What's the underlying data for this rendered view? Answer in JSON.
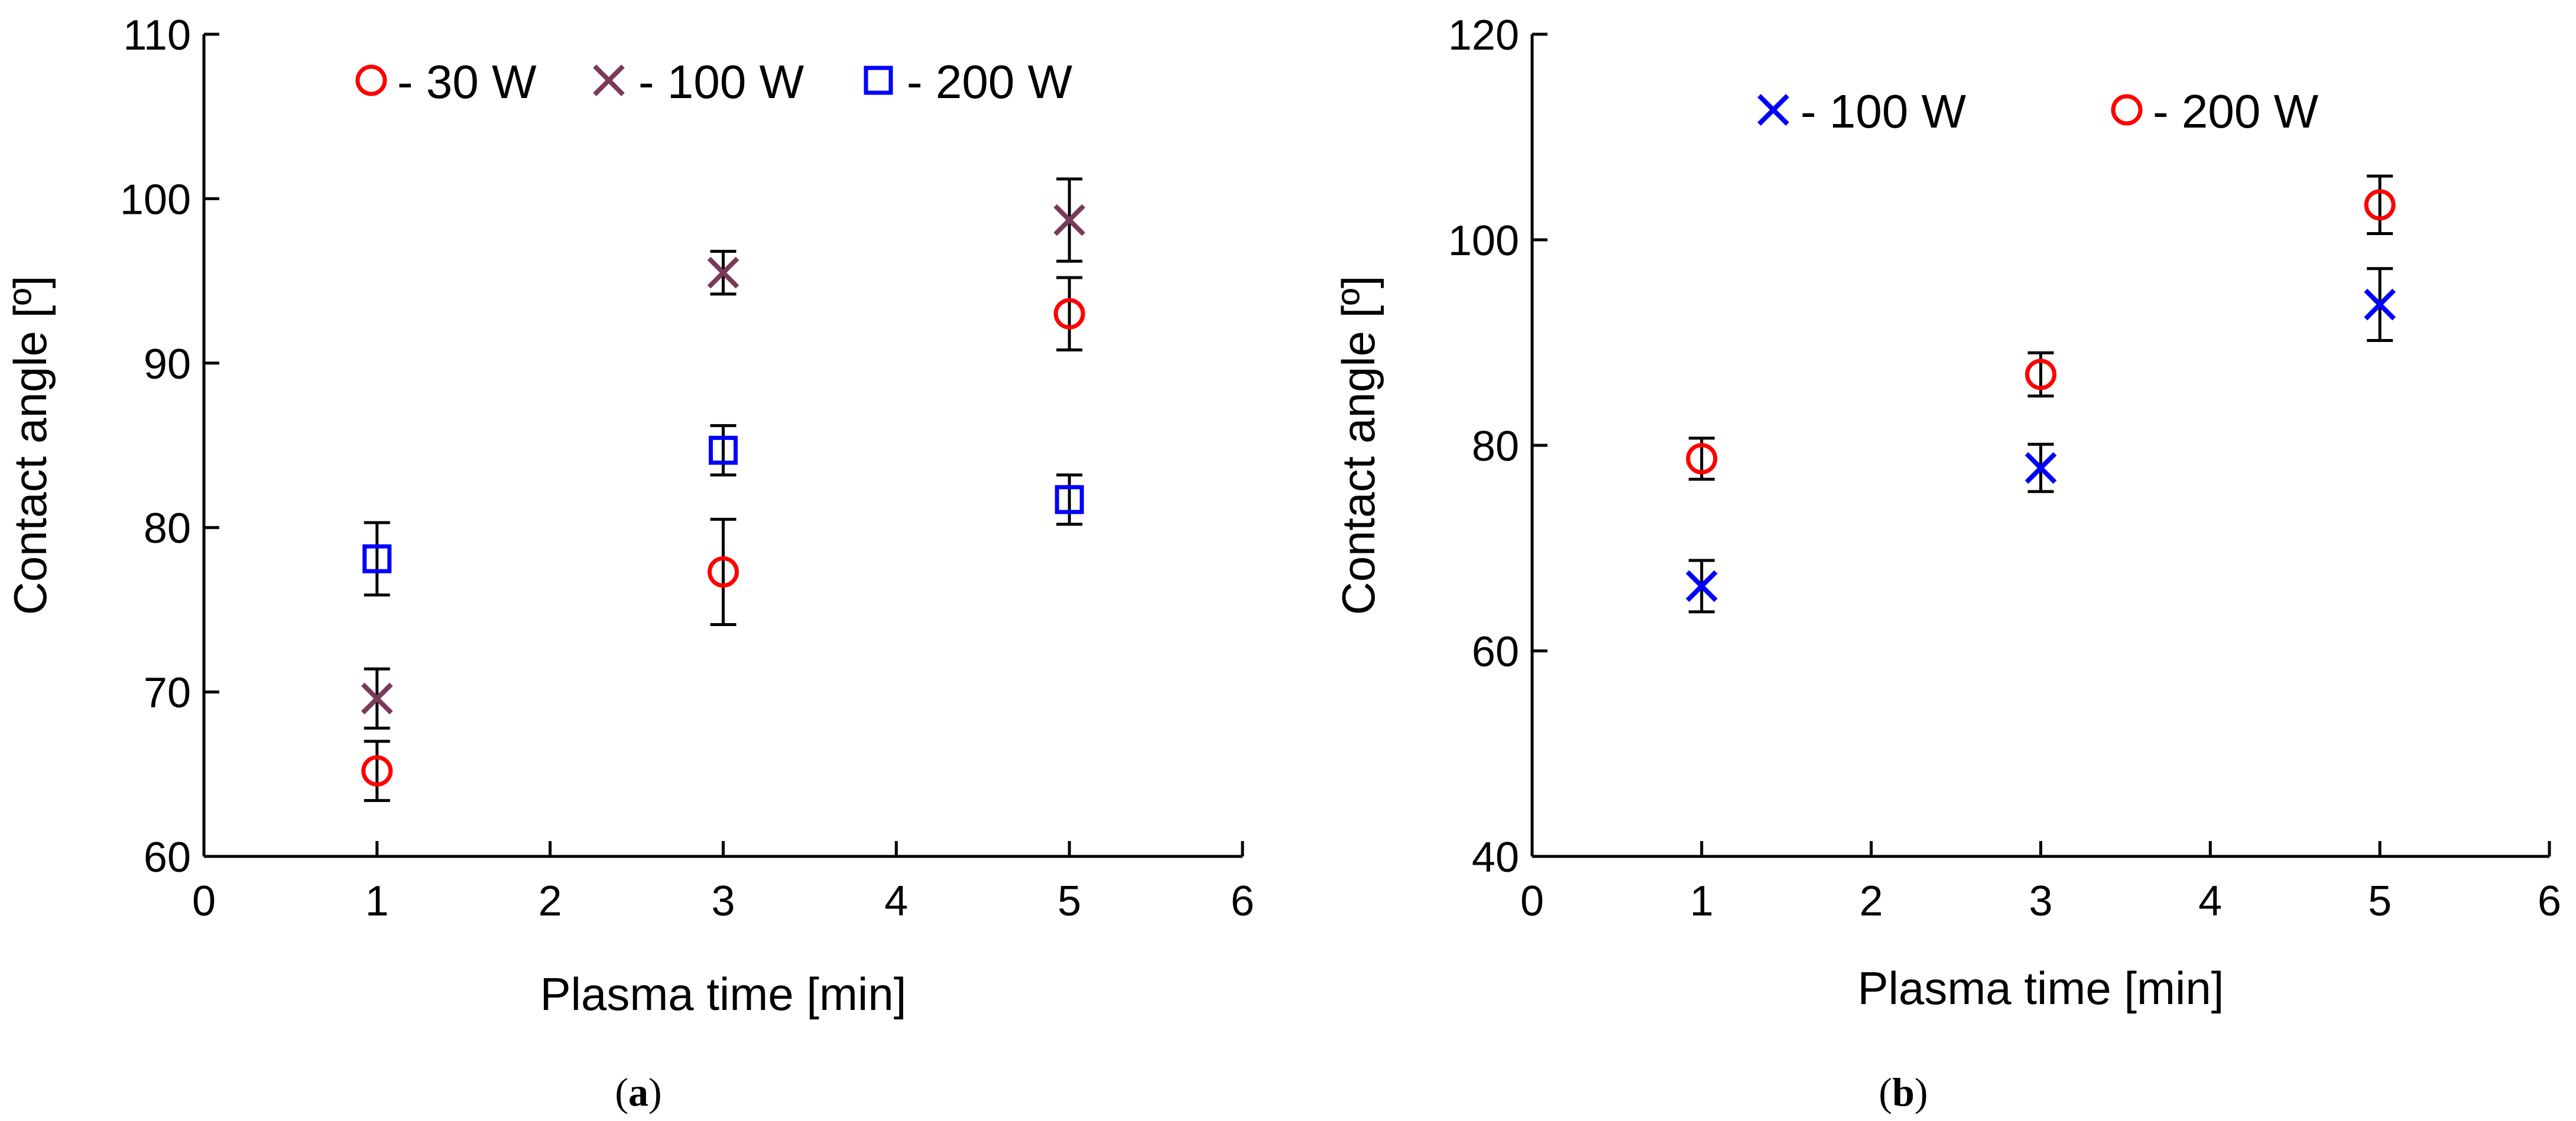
{
  "chart_data": [
    {
      "id": "a",
      "type": "scatter",
      "panel_label": "a",
      "xlabel": "Plasma time [min]",
      "ylabel": "Contact angle [º]",
      "xlim": [
        0,
        6
      ],
      "ylim": [
        60,
        110
      ],
      "xticks": [
        0,
        1,
        2,
        3,
        4,
        5,
        6
      ],
      "yticks": [
        60,
        70,
        80,
        90,
        100,
        110
      ],
      "legend_position": "top",
      "series": [
        {
          "name": "- 30 W",
          "marker": "circle",
          "color": "#ff0000",
          "x": [
            1,
            3,
            5
          ],
          "y": [
            65.2,
            77.3,
            93.0
          ],
          "err": [
            1.8,
            3.2,
            2.2
          ]
        },
        {
          "name": "- 100 W",
          "marker": "x",
          "color": "#7a3a5a",
          "x": [
            1,
            3,
            5
          ],
          "y": [
            69.6,
            95.5,
            98.7
          ],
          "err": [
            1.8,
            1.3,
            2.5
          ]
        },
        {
          "name": "- 200 W",
          "marker": "square",
          "color": "#0000ff",
          "x": [
            1,
            3,
            5
          ],
          "y": [
            78.1,
            84.7,
            81.7
          ],
          "err": [
            2.2,
            1.5,
            1.5
          ]
        }
      ]
    },
    {
      "id": "b",
      "type": "scatter",
      "panel_label": "b",
      "xlabel": "Plasma time [min]",
      "ylabel": "Contact angle [º]",
      "xlim": [
        0,
        6
      ],
      "ylim": [
        40,
        120
      ],
      "xticks": [
        0,
        1,
        2,
        3,
        4,
        5,
        6
      ],
      "yticks": [
        40,
        60,
        80,
        100,
        120
      ],
      "legend_position": "top",
      "series": [
        {
          "name": "- 100 W",
          "marker": "x",
          "color": "#0000ff",
          "x": [
            1,
            3,
            5
          ],
          "y": [
            66.3,
            77.8,
            93.7
          ],
          "err": [
            2.5,
            2.3,
            3.5
          ]
        },
        {
          "name": "- 200 W",
          "marker": "circle",
          "color": "#ff0000",
          "x": [
            1,
            3,
            5
          ],
          "y": [
            78.7,
            86.9,
            103.4
          ],
          "err": [
            2.0,
            2.1,
            2.8
          ]
        }
      ]
    }
  ]
}
